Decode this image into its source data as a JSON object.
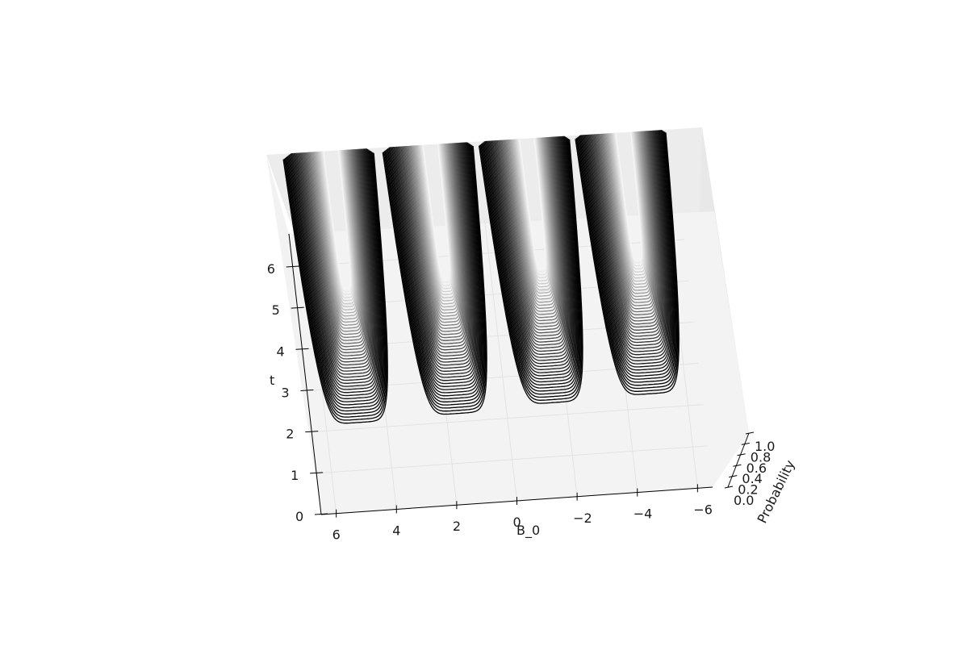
{
  "chart_data": {
    "type": "contour3d",
    "xlabel": "B_0",
    "ylabel": "t",
    "zlabel": "Probability",
    "x_ticks": [
      "6",
      "4",
      "2",
      "0",
      "−2",
      "−4",
      "−6"
    ],
    "t_ticks": [
      "0",
      "1",
      "2",
      "3",
      "4",
      "5",
      "6"
    ],
    "z_ticks": [
      "0.0",
      "0.2",
      "0.4",
      "0.6",
      "0.8",
      "1.0"
    ],
    "xlim": [
      -6.5,
      6.5
    ],
    "tlim": [
      0,
      6.8
    ],
    "zlim": [
      0,
      1
    ],
    "grid": true,
    "colormap": "greys",
    "contour_levels": 45,
    "lobes": [
      {
        "b_center": 4.9,
        "t_min": 2.15
      },
      {
        "b_center": 1.6,
        "t_min": 2.2
      },
      {
        "b_center": -1.6,
        "t_min": 2.3
      },
      {
        "b_center": -4.8,
        "t_min": 2.35
      }
    ]
  }
}
